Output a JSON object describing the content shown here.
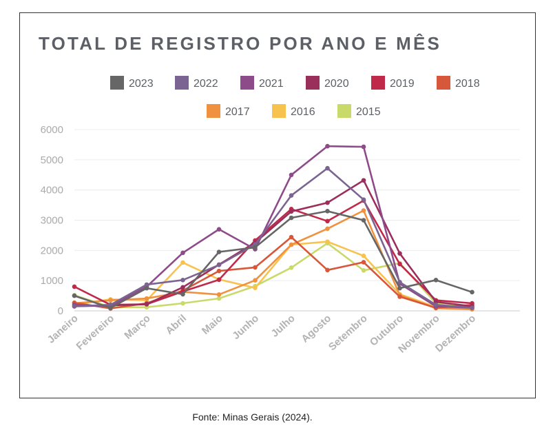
{
  "source_note": "Fonte: Minas Gerais (2024).",
  "chart_data": {
    "type": "line",
    "title": "TOTAL DE REGISTRO POR ANO E MÊS",
    "xlabel": "",
    "ylabel": "",
    "ylim": [
      0,
      6000
    ],
    "yticks": [
      "0",
      "1000",
      "2000",
      "3000",
      "4000",
      "5000",
      "6000"
    ],
    "grid": true,
    "legend_position": "top",
    "categories": [
      "Janeiro",
      "Fevereiro",
      "Março",
      "Abril",
      "Maio",
      "Junho",
      "Julho",
      "Agosto",
      "Setembro",
      "Outubro",
      "Novembro",
      "Dezembro"
    ],
    "series": [
      {
        "name": "2023",
        "color": "#666666",
        "values": [
          500,
          100,
          750,
          550,
          1950,
          2100,
          3080,
          3300,
          3000,
          750,
          1020,
          620
        ]
      },
      {
        "name": "2022",
        "color": "#7b6491",
        "values": [
          150,
          200,
          870,
          1020,
          1520,
          2200,
          3820,
          4720,
          3680,
          950,
          200,
          100
        ]
      },
      {
        "name": "2021",
        "color": "#8e4b8a",
        "values": [
          200,
          150,
          800,
          1920,
          2700,
          2040,
          4500,
          5450,
          5430,
          900,
          150,
          100
        ]
      },
      {
        "name": "2020",
        "color": "#9a2f5c",
        "values": [
          150,
          180,
          220,
          780,
          1530,
          2260,
          3290,
          3580,
          4320,
          1900,
          300,
          150
        ]
      },
      {
        "name": "2019",
        "color": "#c0294a",
        "values": [
          800,
          200,
          220,
          640,
          1030,
          2330,
          3370,
          2970,
          3650,
          1550,
          350,
          250
        ]
      },
      {
        "name": "2018",
        "color": "#d6573a",
        "values": [
          270,
          80,
          250,
          670,
          1320,
          1440,
          2440,
          1350,
          1610,
          470,
          100,
          200
        ]
      },
      {
        "name": "2017",
        "color": "#f0913f",
        "values": [
          250,
          350,
          410,
          630,
          540,
          1010,
          2190,
          2720,
          3320,
          520,
          90,
          50
        ]
      },
      {
        "name": "2016",
        "color": "#f8c24f",
        "values": [
          200,
          380,
          350,
          1600,
          1040,
          760,
          2190,
          2290,
          1820,
          550,
          130,
          60
        ]
      },
      {
        "name": "2015",
        "color": "#c9da6a",
        "values": [
          520,
          120,
          120,
          250,
          410,
          820,
          1430,
          2240,
          1340,
          1580,
          250,
          150
        ]
      }
    ]
  }
}
